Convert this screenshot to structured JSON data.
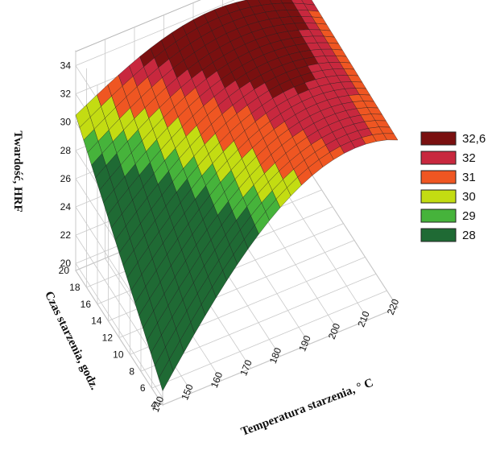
{
  "chart_data": {
    "type": "surface3d",
    "x_label": "Temperatura starzenia, ° C",
    "y_label": "Czas starzenia, godz.",
    "z_label": "Twardość, HRF",
    "x_ticks": [
      "140",
      "150",
      "160",
      "170",
      "180",
      "190",
      "200",
      "210",
      "220"
    ],
    "y_ticks": [
      "4",
      "6",
      "8",
      "10",
      "12",
      "14",
      "16",
      "18",
      "20"
    ],
    "z_ticks": [
      "20",
      "22",
      "24",
      "26",
      "28",
      "30",
      "32",
      "34"
    ],
    "x_range": [
      140,
      220
    ],
    "y_range": [
      4,
      20
    ],
    "z_range": [
      20,
      34.5
    ],
    "grid": true,
    "legend_position": "right",
    "legend": [
      {
        "label": "32,6",
        "color": "#7a1010"
      },
      {
        "label": "32",
        "color": "#c8283e"
      },
      {
        "label": "31",
        "color": "#ef5622"
      },
      {
        "label": "30",
        "color": "#c3dc12"
      },
      {
        "label": "29",
        "color": "#46b33b"
      },
      {
        "label": "28",
        "color": "#1f6a34"
      }
    ],
    "corner_values": [
      {
        "x": 140,
        "y": 4,
        "z": 20.5
      },
      {
        "x": 140,
        "y": 20,
        "z": 30.5
      },
      {
        "x": 220,
        "y": 20,
        "z": 31.5
      },
      {
        "x": 220,
        "y": 4,
        "z": 31.5
      }
    ],
    "peak": {
      "x": 190,
      "y": 20,
      "z": 34.5
    }
  }
}
